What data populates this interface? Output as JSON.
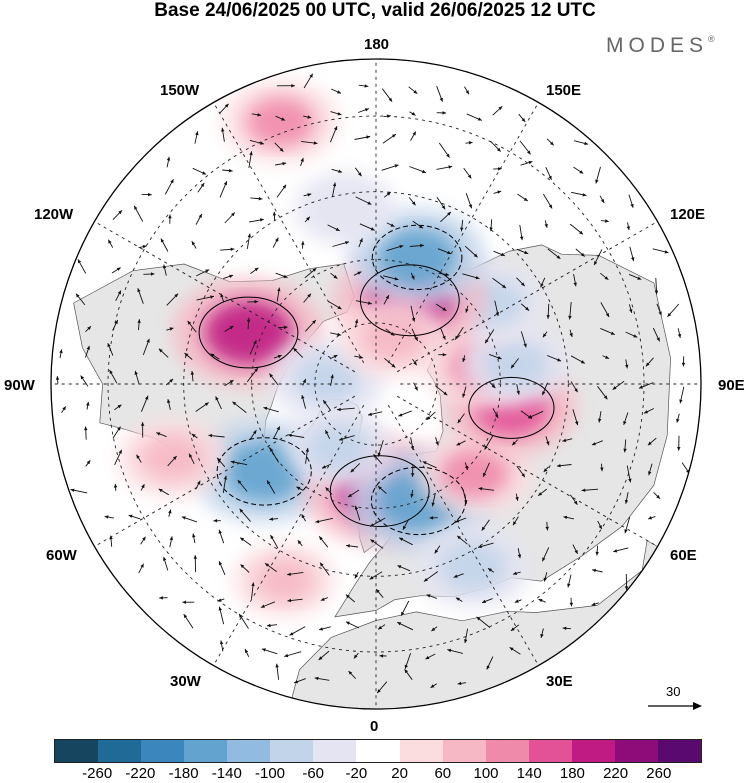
{
  "title": "Base 24/06/2025 00 UTC, valid 26/06/2025 12 UTC",
  "brand": {
    "name": "MODES",
    "mark": "®"
  },
  "map": {
    "projection": "north-polar-stereographic",
    "longitude_labels": [
      {
        "text": "180",
        "position": "top"
      },
      {
        "text": "150E",
        "position": "top-right-upper"
      },
      {
        "text": "120E",
        "position": "right-upper"
      },
      {
        "text": "90E",
        "position": "right"
      },
      {
        "text": "60E",
        "position": "right-lower"
      },
      {
        "text": "30E",
        "position": "bottom-right"
      },
      {
        "text": "0",
        "position": "bottom"
      },
      {
        "text": "30W",
        "position": "bottom-left"
      },
      {
        "text": "60W",
        "position": "left-lower"
      },
      {
        "text": "90W",
        "position": "left"
      },
      {
        "text": "120W",
        "position": "left-upper"
      },
      {
        "text": "150W",
        "position": "top-left-upper"
      }
    ],
    "colors": {
      "land": "#e6e6e6",
      "ocean": "#ffffff",
      "coastline": "#555555",
      "grid": "#222222",
      "vector": "#111111"
    },
    "anomaly_centers": [
      {
        "lon": -112,
        "lat": 57,
        "value": 200
      },
      {
        "lon": -52,
        "lat": 56,
        "value": -180
      },
      {
        "lon": 2,
        "lat": 64,
        "value": 200
      },
      {
        "lon": 20,
        "lat": 60,
        "value": -180
      },
      {
        "lon": 48,
        "lat": 58,
        "value": 100
      },
      {
        "lon": 80,
        "lat": 57,
        "value": 140
      },
      {
        "lon": 100,
        "lat": 64,
        "value": 100
      },
      {
        "lon": 98,
        "lat": 56,
        "value": -80
      },
      {
        "lon": 125,
        "lat": 56,
        "value": -80
      },
      {
        "lon": 158,
        "lat": 68,
        "value": 200
      },
      {
        "lon": 162,
        "lat": 58,
        "value": -160
      },
      {
        "lon": -170,
        "lat": 48,
        "value": -60
      },
      {
        "lon": -160,
        "lat": 28,
        "value": 100
      },
      {
        "lon": -25,
        "lat": 40,
        "value": 60
      },
      {
        "lon": -70,
        "lat": 40,
        "value": 80
      },
      {
        "lon": 28,
        "lat": 42,
        "value": -100
      },
      {
        "lon": -95,
        "lat": 78,
        "value": -100
      },
      {
        "lon": 160,
        "lat": 78,
        "value": 80
      },
      {
        "lon": -30,
        "lat": 72,
        "value": -80
      }
    ],
    "reference_vector": {
      "label": "30"
    }
  },
  "colorbar": {
    "colors": [
      "#16465f",
      "#1f6a97",
      "#3b87bd",
      "#62a3cf",
      "#91bce0",
      "#c2d4ea",
      "#e4e4f2",
      "#ffffff",
      "#fbdcdf",
      "#f6b8c4",
      "#f08aab",
      "#e35197",
      "#bf1b82",
      "#8e0c79",
      "#5a0a6e"
    ],
    "labels": [
      "-260",
      "-220",
      "-180",
      "-140",
      "-100",
      "-60",
      "-20",
      "20",
      "60",
      "100",
      "140",
      "180",
      "220",
      "260"
    ]
  }
}
